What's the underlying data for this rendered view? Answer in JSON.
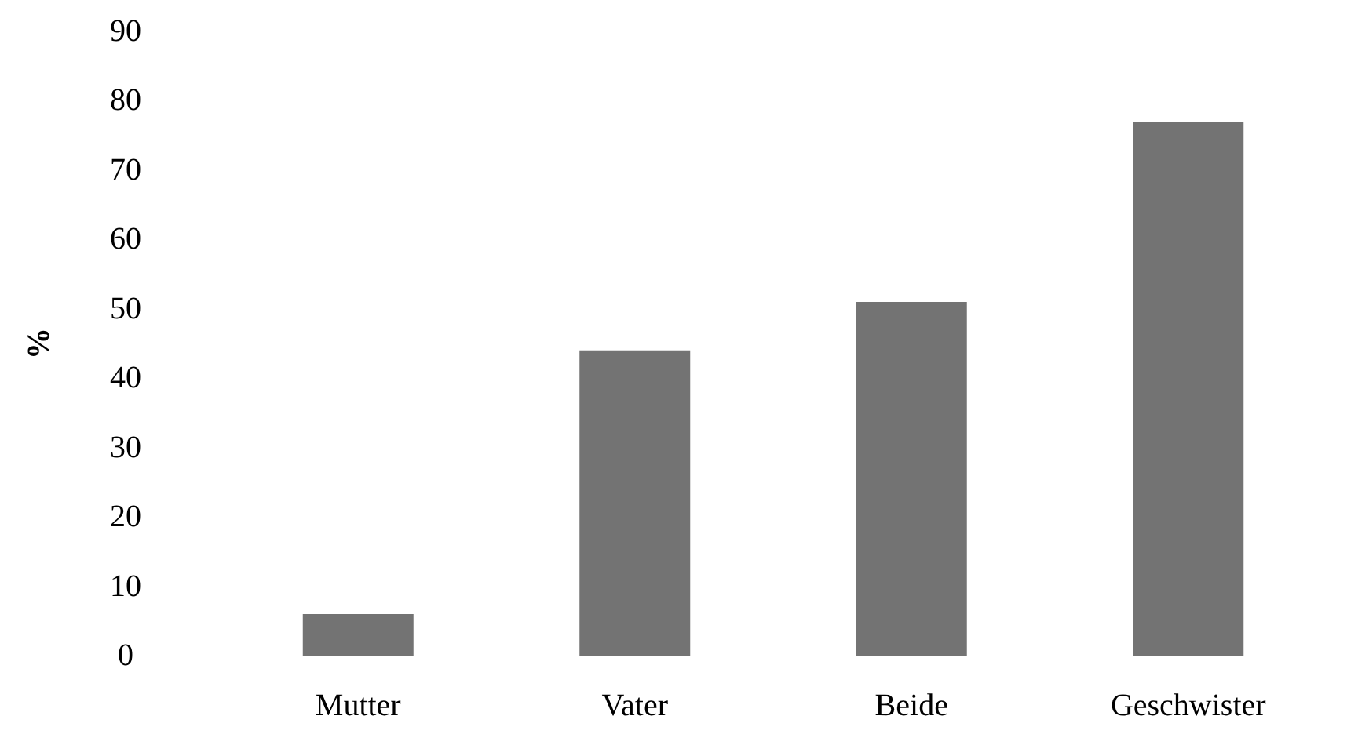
{
  "chart_data": {
    "type": "bar",
    "ylabel": "%",
    "categories": [
      "Mutter",
      "Vater",
      "Beide",
      "Geschwister"
    ],
    "values": [
      6,
      44,
      51,
      77
    ],
    "color": "#737373",
    "ylim": [
      0,
      90
    ],
    "yticks": [
      0,
      10,
      20,
      30,
      40,
      50,
      60,
      70,
      80,
      90
    ],
    "grid": false
  }
}
